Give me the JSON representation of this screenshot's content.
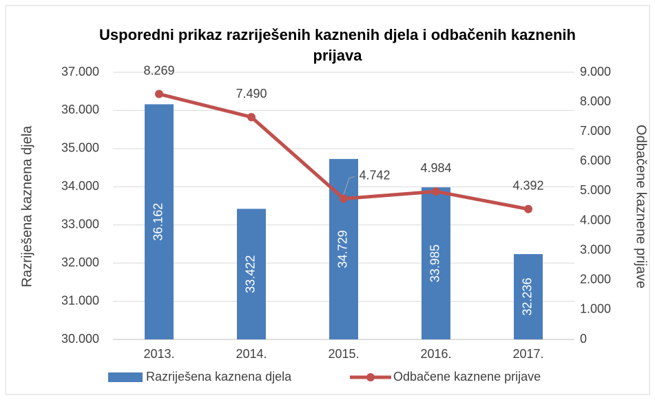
{
  "chart_data": {
    "type": "bar-line",
    "title": "Usporedni  prikaz  razriješenih kaznenih djela i odbačenih kaznenih prijava",
    "ylabel": "Razriješena kaznena djela",
    "y2label": "Odbačene kaznene prijave",
    "categories": [
      "2013.",
      "2014.",
      "2015.",
      "2016.",
      "2017."
    ],
    "series": [
      {
        "name": "Razriješena kaznena djela",
        "type": "bar",
        "color": "#4a7ebb",
        "values": [
          36162,
          33422,
          34729,
          33985,
          32236
        ],
        "value_labels": [
          "36.162",
          "33.422",
          "34.729",
          "33.985",
          "32.236"
        ]
      },
      {
        "name": "Odbačene kaznene prijave",
        "type": "line",
        "axis": "y2",
        "color": "#c0504d",
        "values": [
          8269,
          7490,
          4742,
          4984,
          4392
        ],
        "value_labels": [
          "8.269",
          "7.490",
          "4.742",
          "4.984",
          "4.392"
        ]
      }
    ],
    "ylim": [
      30000,
      37000
    ],
    "yticks": [
      {
        "value": 30000,
        "label": "30.000"
      },
      {
        "value": 31000,
        "label": "31.000"
      },
      {
        "value": 32000,
        "label": "32.000"
      },
      {
        "value": 33000,
        "label": "33.000"
      },
      {
        "value": 34000,
        "label": "34.000"
      },
      {
        "value": 35000,
        "label": "35.000"
      },
      {
        "value": 36000,
        "label": "36.000"
      },
      {
        "value": 37000,
        "label": "37.000"
      }
    ],
    "y2lim": [
      0,
      9000
    ],
    "y2ticks": [
      0,
      {
        "value": 1000,
        "label": "1.000"
      },
      {
        "value": 2000,
        "label": "2.000"
      },
      {
        "value": 3000,
        "label": "3.000"
      },
      {
        "value": 4000,
        "label": "4.000"
      },
      {
        "value": 5000,
        "label": "5.000"
      },
      {
        "value": 6000,
        "label": "6.000"
      },
      {
        "value": 7000,
        "label": "7.000"
      },
      {
        "value": 8000,
        "label": "8.000"
      },
      {
        "value": 9000,
        "label": "9.000"
      }
    ],
    "grid": true,
    "legend": "bottom"
  }
}
